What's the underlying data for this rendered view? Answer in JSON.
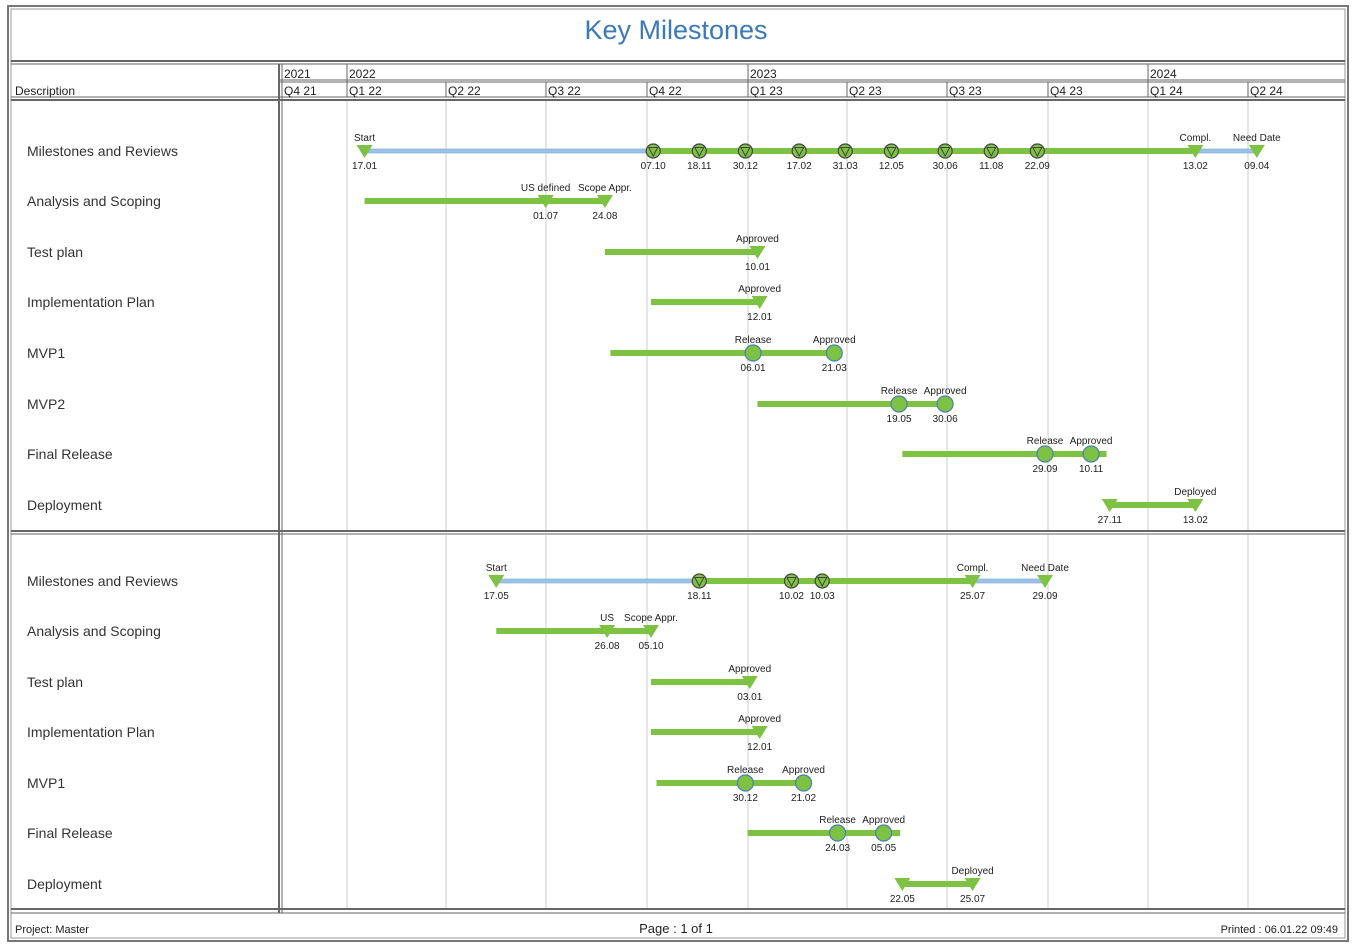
{
  "title": "Key Milestones",
  "header": {
    "description_label": "Description",
    "years": [
      "2021",
      "2022",
      "2023",
      "2024"
    ],
    "quarters": [
      "Q4 21",
      "Q1 22",
      "Q2 22",
      "Q3 22",
      "Q4 22",
      "Q1 23",
      "Q2 23",
      "Q3 23",
      "Q4 23",
      "Q1 24",
      "Q2 24"
    ]
  },
  "footer": {
    "project": "Project: Master",
    "page": "Page : 1 of 1",
    "printed": "Printed : 06.01.22 09:49"
  },
  "colors": {
    "title": "#3a7ab8",
    "bar": "#7dc242",
    "plan_line": "#9cc3e6",
    "circle_border": "#4a7ebb"
  },
  "chart_data": {
    "type": "gantt",
    "x_range": [
      "2021-11-01",
      "2024-06-28"
    ],
    "grid": "quarterly vertical lines",
    "sections": [
      {
        "rows": [
          {
            "label": "Milestones and Reviews",
            "plan": [
              [
                "2022-01-17",
                "2022-10-07"
              ],
              [
                "2024-02-13",
                "2024-04-09"
              ]
            ],
            "bar": [
              "2022-10-07",
              "2024-02-13"
            ],
            "milestones": [
              {
                "shape": "triangle",
                "date": "2022-01-17",
                "label": "17.01",
                "caption": "Start"
              },
              {
                "shape": "circled-triangle",
                "date": "2022-10-07",
                "label": "07.10",
                "caption": ""
              },
              {
                "shape": "circled-triangle",
                "date": "2022-11-18",
                "label": "18.11",
                "caption": ""
              },
              {
                "shape": "circled-triangle",
                "date": "2022-12-30",
                "label": "30.12",
                "caption": ""
              },
              {
                "shape": "circled-triangle",
                "date": "2023-02-17",
                "label": "17.02",
                "caption": ""
              },
              {
                "shape": "circled-triangle",
                "date": "2023-03-31",
                "label": "31.03",
                "caption": ""
              },
              {
                "shape": "circled-triangle",
                "date": "2023-05-12",
                "label": "12.05",
                "caption": ""
              },
              {
                "shape": "circled-triangle",
                "date": "2023-06-30",
                "label": "30.06",
                "caption": ""
              },
              {
                "shape": "circled-triangle",
                "date": "2023-08-11",
                "label": "11.08",
                "caption": ""
              },
              {
                "shape": "circled-triangle",
                "date": "2023-09-22",
                "label": "22.09",
                "caption": ""
              },
              {
                "shape": "triangle",
                "date": "2024-02-13",
                "label": "13.02",
                "caption": "Compl."
              },
              {
                "shape": "triangle",
                "date": "2024-04-09",
                "label": "09.04",
                "caption": "Need Date"
              }
            ]
          },
          {
            "label": "Analysis and Scoping",
            "plan": [],
            "bar": [
              "2022-01-17",
              "2022-08-24"
            ],
            "milestones": [
              {
                "shape": "triangle",
                "date": "2022-07-01",
                "label": "01.07",
                "caption": "US defined"
              },
              {
                "shape": "triangle",
                "date": "2022-08-24",
                "label": "24.08",
                "caption": "Scope Appr."
              }
            ]
          },
          {
            "label": "Test plan",
            "plan": [],
            "bar": [
              "2022-08-24",
              "2023-01-10"
            ],
            "milestones": [
              {
                "shape": "triangle",
                "date": "2023-01-10",
                "label": "10.01",
                "caption": "Approved"
              }
            ]
          },
          {
            "label": "Implementation Plan",
            "plan": [],
            "bar": [
              "2022-10-05",
              "2023-01-12"
            ],
            "milestones": [
              {
                "shape": "triangle",
                "date": "2023-01-12",
                "label": "12.01",
                "caption": "Approved"
              }
            ]
          },
          {
            "label": "MVP1",
            "plan": [],
            "bar": [
              "2022-08-29",
              "2023-03-21"
            ],
            "milestones": [
              {
                "shape": "circle",
                "date": "2023-01-06",
                "label": "06.01",
                "caption": "Release"
              },
              {
                "shape": "circle",
                "date": "2023-03-21",
                "label": "21.03",
                "caption": "Approved"
              }
            ]
          },
          {
            "label": "MVP2",
            "plan": [],
            "bar": [
              "2023-01-10",
              "2023-06-30"
            ],
            "milestones": [
              {
                "shape": "circle",
                "date": "2023-05-19",
                "label": "19.05",
                "caption": "Release"
              },
              {
                "shape": "circle",
                "date": "2023-06-30",
                "label": "30.06",
                "caption": "Approved"
              }
            ]
          },
          {
            "label": "Final Release",
            "plan": [],
            "bar": [
              "2023-05-22",
              "2023-11-24"
            ],
            "milestones": [
              {
                "shape": "circle",
                "date": "2023-09-29",
                "label": "29.09",
                "caption": "Release"
              },
              {
                "shape": "circle",
                "date": "2023-11-10",
                "label": "10.11",
                "caption": "Approved"
              }
            ]
          },
          {
            "label": "Deployment",
            "plan": [],
            "bar": [
              "2023-11-27",
              "2024-02-13"
            ],
            "milestones": [
              {
                "shape": "triangle",
                "date": "2023-11-27",
                "label": "27.11",
                "caption": ""
              },
              {
                "shape": "triangle",
                "date": "2024-02-13",
                "label": "13.02",
                "caption": "Deployed"
              }
            ]
          }
        ]
      },
      {
        "rows": [
          {
            "label": "Milestones and Reviews",
            "plan": [
              [
                "2022-05-17",
                "2022-11-18"
              ],
              [
                "2023-07-25",
                "2023-09-29"
              ]
            ],
            "bar": [
              "2022-11-18",
              "2023-07-25"
            ],
            "milestones": [
              {
                "shape": "triangle",
                "date": "2022-05-17",
                "label": "17.05",
                "caption": "Start"
              },
              {
                "shape": "circled-triangle",
                "date": "2022-11-18",
                "label": "18.11",
                "caption": ""
              },
              {
                "shape": "circled-triangle",
                "date": "2023-02-10",
                "label": "10.02",
                "caption": ""
              },
              {
                "shape": "circled-triangle",
                "date": "2023-03-10",
                "label": "10.03",
                "caption": ""
              },
              {
                "shape": "triangle",
                "date": "2023-07-25",
                "label": "25.07",
                "caption": "Compl."
              },
              {
                "shape": "triangle",
                "date": "2023-09-29",
                "label": "29.09",
                "caption": "Need Date"
              }
            ]
          },
          {
            "label": "Analysis and Scoping",
            "plan": [],
            "bar": [
              "2022-05-17",
              "2022-10-05"
            ],
            "milestones": [
              {
                "shape": "triangle",
                "date": "2022-08-26",
                "label": "26.08",
                "caption": "US"
              },
              {
                "shape": "triangle",
                "date": "2022-10-05",
                "label": "05.10",
                "caption": "Scope Appr."
              }
            ]
          },
          {
            "label": "Test plan",
            "plan": [],
            "bar": [
              "2022-10-05",
              "2023-01-03"
            ],
            "milestones": [
              {
                "shape": "triangle",
                "date": "2023-01-03",
                "label": "03.01",
                "caption": "Approved"
              }
            ]
          },
          {
            "label": "Implementation Plan",
            "plan": [],
            "bar": [
              "2022-10-05",
              "2023-01-12"
            ],
            "milestones": [
              {
                "shape": "triangle",
                "date": "2023-01-12",
                "label": "12.01",
                "caption": "Approved"
              }
            ]
          },
          {
            "label": "MVP1",
            "plan": [],
            "bar": [
              "2022-10-10",
              "2023-02-21"
            ],
            "milestones": [
              {
                "shape": "circle",
                "date": "2022-12-30",
                "label": "30.12",
                "caption": "Release"
              },
              {
                "shape": "circle",
                "date": "2023-02-21",
                "label": "21.02",
                "caption": "Approved"
              }
            ]
          },
          {
            "label": "Final Release",
            "plan": [],
            "bar": [
              "2023-01-01",
              "2023-05-20"
            ],
            "milestones": [
              {
                "shape": "circle",
                "date": "2023-03-24",
                "label": "24.03",
                "caption": "Release"
              },
              {
                "shape": "circle",
                "date": "2023-05-05",
                "label": "05.05",
                "caption": "Approved"
              }
            ]
          },
          {
            "label": "Deployment",
            "plan": [],
            "bar": [
              "2023-05-22",
              "2023-07-25"
            ],
            "milestones": [
              {
                "shape": "triangle",
                "date": "2023-05-22",
                "label": "22.05",
                "caption": ""
              },
              {
                "shape": "triangle",
                "date": "2023-07-25",
                "label": "25.07",
                "caption": "Deployed"
              }
            ]
          }
        ]
      }
    ]
  }
}
